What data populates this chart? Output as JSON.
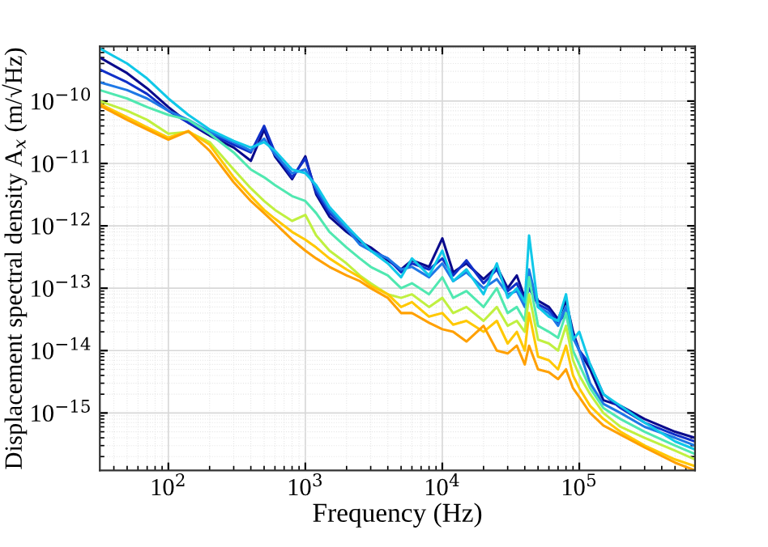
{
  "chart_data": {
    "type": "line",
    "xlabel": "Frequency (Hz)",
    "ylabel": "Displacement spectral density A$_{x}$ (m/√Hz)",
    "log": "xy",
    "grid": true,
    "line_style": "solid",
    "xlim": [
      31.6,
      700000
    ],
    "ylim": [
      1.2e-16,
      7.5e-10
    ],
    "xticks": [
      {
        "value": 100,
        "label": "10$^{2}$"
      },
      {
        "value": 1000,
        "label": "10$^{3}$"
      },
      {
        "value": 10000,
        "label": "10$^{4}$"
      },
      {
        "value": 100000,
        "label": "10$^{5}$"
      }
    ],
    "yticks": [
      {
        "value": 1e-15,
        "label": "10$^{−15}$"
      },
      {
        "value": 1e-14,
        "label": "10$^{−14}$"
      },
      {
        "value": 1e-13,
        "label": "10$^{−13}$"
      },
      {
        "value": 1e-12,
        "label": "10$^{−12}$"
      },
      {
        "value": 1e-11,
        "label": "10$^{−11}$"
      },
      {
        "value": 1e-10,
        "label": "10$^{−10}$"
      }
    ],
    "x": [
      31.6,
      50,
      70,
      100,
      140,
      200,
      300,
      400,
      500,
      600,
      800,
      1000,
      1200,
      1500,
      2000,
      2500,
      3000,
      4000,
      5000,
      6000,
      8000,
      10000,
      12000,
      15000,
      20000,
      25000,
      30000,
      35000,
      40000,
      43000,
      50000,
      60000,
      70000,
      80000,
      90000,
      100000,
      120000,
      150000,
      200000,
      300000,
      500000,
      700000
    ],
    "series": [
      {
        "color": "#0a0a8c",
        "values": [
          5e-10,
          2.8e-10,
          1.6e-10,
          8e-11,
          4.5e-11,
          2.8e-11,
          1.8e-11,
          1.1e-11,
          3.5e-11,
          1.3e-11,
          5.6e-12,
          1.3e-11,
          3.2e-12,
          1.4e-12,
          8e-13,
          5.6e-13,
          4.5e-13,
          2.8e-13,
          2e-13,
          2.8e-13,
          2.2e-13,
          6.3e-13,
          1.8e-13,
          2.5e-13,
          1.4e-13,
          2.2e-13,
          1e-13,
          1.6e-13,
          7e-14,
          1.3e-13,
          6.3e-14,
          5e-14,
          3.2e-14,
          6.3e-14,
          2e-14,
          1e-14,
          5e-15,
          1.6e-15,
          1.3e-15,
          8e-16,
          5e-16,
          4e-16
        ]
      },
      {
        "color": "#1030c8",
        "values": [
          3.2e-10,
          2e-10,
          1.3e-10,
          7e-11,
          4.5e-11,
          3e-11,
          2e-11,
          1.5e-11,
          4e-11,
          1.5e-11,
          6e-12,
          1.2e-11,
          3.5e-12,
          1.6e-12,
          9e-13,
          6e-13,
          4e-13,
          3e-13,
          1.8e-13,
          2.5e-13,
          2e-13,
          3e-13,
          1.6e-13,
          2.8e-13,
          1.2e-13,
          2e-13,
          9e-14,
          1.2e-13,
          6e-14,
          1e-13,
          5.5e-14,
          4.5e-14,
          2.8e-14,
          4e-14,
          1.8e-14,
          1e-14,
          6e-15,
          2e-15,
          1.2e-15,
          7e-16,
          4.5e-16,
          3.5e-16
        ]
      },
      {
        "color": "#1e78e6",
        "values": [
          2e-10,
          1.5e-10,
          1.1e-10,
          7e-11,
          5e-11,
          3.2e-11,
          2.2e-11,
          1.6e-11,
          2.5e-11,
          1.4e-11,
          7e-12,
          8e-12,
          4e-12,
          1.8e-12,
          9e-13,
          5e-13,
          4e-13,
          3e-13,
          2e-13,
          2.2e-13,
          1.5e-13,
          2.5e-13,
          1.3e-13,
          1.8e-13,
          1e-13,
          1.4e-13,
          8e-14,
          9e-14,
          5e-14,
          2e-13,
          5e-14,
          4e-14,
          2.5e-14,
          5e-14,
          1.6e-14,
          1e-14,
          3e-15,
          1.4e-15,
          1e-15,
          6e-16,
          4e-16,
          3e-16
        ]
      },
      {
        "color": "#10c8e8",
        "values": [
          7e-10,
          4e-10,
          2.3e-10,
          1.1e-10,
          6e-11,
          3.5e-11,
          2.3e-11,
          1.8e-11,
          2.2e-11,
          1.6e-11,
          8e-12,
          7e-12,
          4.5e-12,
          2e-12,
          1e-12,
          6e-13,
          4e-13,
          2.5e-13,
          1.5e-13,
          3e-13,
          1.6e-13,
          4e-13,
          1.3e-13,
          2e-13,
          8e-14,
          2.5e-13,
          7e-14,
          1e-13,
          6e-14,
          7e-13,
          5e-14,
          3.5e-14,
          3e-14,
          8e-14,
          1.5e-14,
          2e-14,
          6e-15,
          2e-15,
          1.3e-15,
          7e-16,
          3.5e-16,
          2.6e-16
        ]
      },
      {
        "color": "#50e8b0",
        "values": [
          1.5e-10,
          1.1e-10,
          8e-11,
          6e-11,
          5e-11,
          3e-11,
          1.5e-11,
          8e-12,
          6e-12,
          4.5e-12,
          3e-12,
          2.5e-12,
          1.6e-12,
          8e-13,
          4.5e-13,
          3e-13,
          2.2e-13,
          1.6e-13,
          1e-13,
          1.2e-13,
          8e-14,
          1.5e-13,
          7e-14,
          9e-14,
          5e-14,
          1e-13,
          4e-14,
          5e-14,
          3e-14,
          1.5e-13,
          2.5e-14,
          2e-14,
          1.6e-14,
          4e-14,
          1e-14,
          6e-15,
          2.5e-15,
          1.2e-15,
          8e-16,
          5e-16,
          3e-16,
          2.2e-16
        ]
      },
      {
        "color": "#c0f040",
        "values": [
          1e-10,
          7e-11,
          5e-11,
          3e-11,
          3.2e-11,
          2.2e-11,
          8e-12,
          4e-12,
          2.5e-12,
          1.8e-12,
          1.2e-12,
          1.5e-12,
          7e-13,
          4e-13,
          2.5e-13,
          1.6e-13,
          1.2e-13,
          8e-14,
          7e-14,
          8e-14,
          5e-14,
          7e-14,
          4e-14,
          5e-14,
          3e-14,
          5e-14,
          2.5e-14,
          3e-14,
          2e-14,
          8e-14,
          1.5e-14,
          1.3e-14,
          1e-14,
          2.5e-14,
          7e-15,
          4e-15,
          2e-15,
          1e-15,
          6e-16,
          4e-16,
          2.5e-16,
          1.8e-16
        ]
      },
      {
        "color": "#ffc800",
        "values": [
          9e-11,
          5.5e-11,
          3.8e-11,
          2.6e-11,
          3.3e-11,
          2e-11,
          6e-12,
          3e-12,
          1.8e-12,
          1.3e-12,
          8e-13,
          6e-13,
          4.5e-13,
          3e-13,
          2e-13,
          1.5e-13,
          1.1e-13,
          8e-14,
          5e-14,
          6e-14,
          3.5e-14,
          4e-14,
          2.6e-14,
          3e-14,
          2e-14,
          3e-14,
          1.3e-14,
          2e-14,
          1e-14,
          4e-14,
          8e-15,
          7e-15,
          5e-15,
          1.2e-14,
          4e-15,
          2.5e-15,
          1.3e-15,
          8e-16,
          5e-16,
          3e-16,
          1.8e-16,
          1.4e-16
        ]
      },
      {
        "color": "#ffa000",
        "values": [
          8.5e-11,
          5e-11,
          3.5e-11,
          2.4e-11,
          3.3e-11,
          1.6e-11,
          5e-12,
          2.5e-12,
          1.6e-12,
          1.1e-12,
          6e-13,
          4e-13,
          3e-13,
          2.2e-13,
          1.6e-13,
          1.3e-13,
          1e-13,
          7e-14,
          4e-14,
          4e-14,
          2.8e-14,
          2.2e-14,
          2e-14,
          1.4e-14,
          2.5e-14,
          1e-14,
          9e-15,
          1.2e-14,
          6e-15,
          1.2e-14,
          5e-15,
          4.5e-15,
          3.5e-15,
          5e-15,
          2.5e-15,
          1.8e-15,
          1e-15,
          6.3e-16,
          4.5e-16,
          2.8e-16,
          1.6e-16,
          1.2e-16
        ]
      }
    ]
  }
}
